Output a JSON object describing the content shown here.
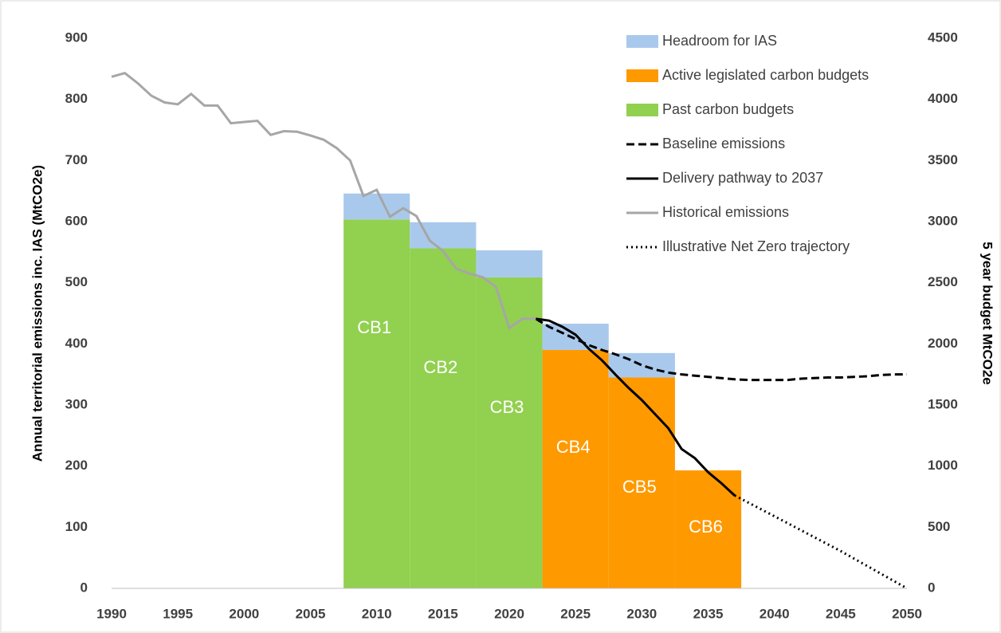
{
  "chart_data": {
    "type": "combo",
    "y_label": "Annual territorial emissions inc. IAS (MtCO2e)",
    "y2_label": "5 year budget MtCO2e",
    "xlim": [
      1990,
      2050
    ],
    "xticks": [
      1990,
      1995,
      2000,
      2005,
      2010,
      2015,
      2020,
      2025,
      2030,
      2035,
      2040,
      2045,
      2050
    ],
    "ylim": [
      0,
      900
    ],
    "yticks": [
      0,
      100,
      200,
      300,
      400,
      500,
      600,
      700,
      800,
      900
    ],
    "y2lim": [
      0,
      4500
    ],
    "y2ticks": [
      0,
      500,
      1000,
      1500,
      2000,
      2500,
      3000,
      3500,
      4000,
      4500
    ],
    "categories": [
      "CB1",
      "CB2",
      "CB3",
      "CB4",
      "CB5",
      "CB6"
    ],
    "bar_x": [
      2010,
      2015,
      2020,
      2025,
      2030,
      2035
    ],
    "series": [
      {
        "name": "Headroom for IAS",
        "kind": "bar",
        "axis": "y2",
        "color": "#a9c9ec",
        "values": [
          212,
          213,
          221,
          215,
          200,
          null
        ]
      },
      {
        "name": "Active legislated carbon budgets",
        "kind": "bar",
        "axis": "y2",
        "color": "#ff9900",
        "values": [
          null,
          null,
          null,
          1950,
          1725,
          965
        ]
      },
      {
        "name": "Past carbon budgets",
        "kind": "bar",
        "axis": "y2",
        "color": "#92d050",
        "values": [
          3018,
          2782,
          2544,
          null,
          null,
          null
        ]
      },
      {
        "name": "Baseline emissions",
        "kind": "line",
        "color": "#000000",
        "style": "dashed",
        "x": [
          2022,
          2023,
          2024,
          2025,
          2026,
          2027,
          2028,
          2029,
          2030,
          2031,
          2032,
          2033,
          2034,
          2035,
          2036,
          2037,
          2038,
          2039,
          2040,
          2041,
          2042,
          2043,
          2044,
          2045,
          2046,
          2047,
          2048,
          2049,
          2050
        ],
        "values": [
          441,
          428,
          418,
          408,
          398,
          390,
          383,
          375,
          365,
          358,
          353,
          350,
          348,
          346,
          344,
          342,
          341,
          341,
          341,
          341,
          343,
          344,
          345,
          345,
          346,
          347,
          349,
          350,
          350
        ]
      },
      {
        "name": "Delivery pathway to 2037",
        "kind": "line",
        "color": "#000000",
        "style": "solid",
        "x": [
          2022,
          2023,
          2024,
          2025,
          2026,
          2027,
          2028,
          2029,
          2030,
          2031,
          2032,
          2033,
          2034,
          2035,
          2036,
          2037
        ],
        "values": [
          441,
          438,
          428,
          415,
          392,
          373,
          350,
          328,
          308,
          285,
          262,
          228,
          213,
          190,
          172,
          152
        ]
      },
      {
        "name": "Historical emissions",
        "kind": "line",
        "color": "#a6a6a6",
        "style": "solid",
        "x": [
          1990,
          1991,
          1992,
          1993,
          1994,
          1995,
          1996,
          1997,
          1998,
          1999,
          2000,
          2001,
          2002,
          2003,
          2004,
          2005,
          2006,
          2007,
          2008,
          2009,
          2010,
          2011,
          2012,
          2013,
          2014,
          2015,
          2016,
          2017,
          2018,
          2019,
          2020,
          2021,
          2022
        ],
        "values": [
          837,
          843,
          826,
          806,
          795,
          792,
          809,
          790,
          790,
          761,
          763,
          765,
          742,
          748,
          747,
          741,
          734,
          720,
          700,
          642,
          652,
          608,
          622,
          609,
          569,
          552,
          523,
          515,
          509,
          493,
          426,
          441,
          441
        ]
      },
      {
        "name": "Illustrative Net Zero trajectory",
        "kind": "line",
        "color": "#000000",
        "style": "dotted",
        "x": [
          2037,
          2040,
          2045,
          2050
        ],
        "values": [
          152,
          118,
          61,
          0
        ]
      }
    ]
  }
}
